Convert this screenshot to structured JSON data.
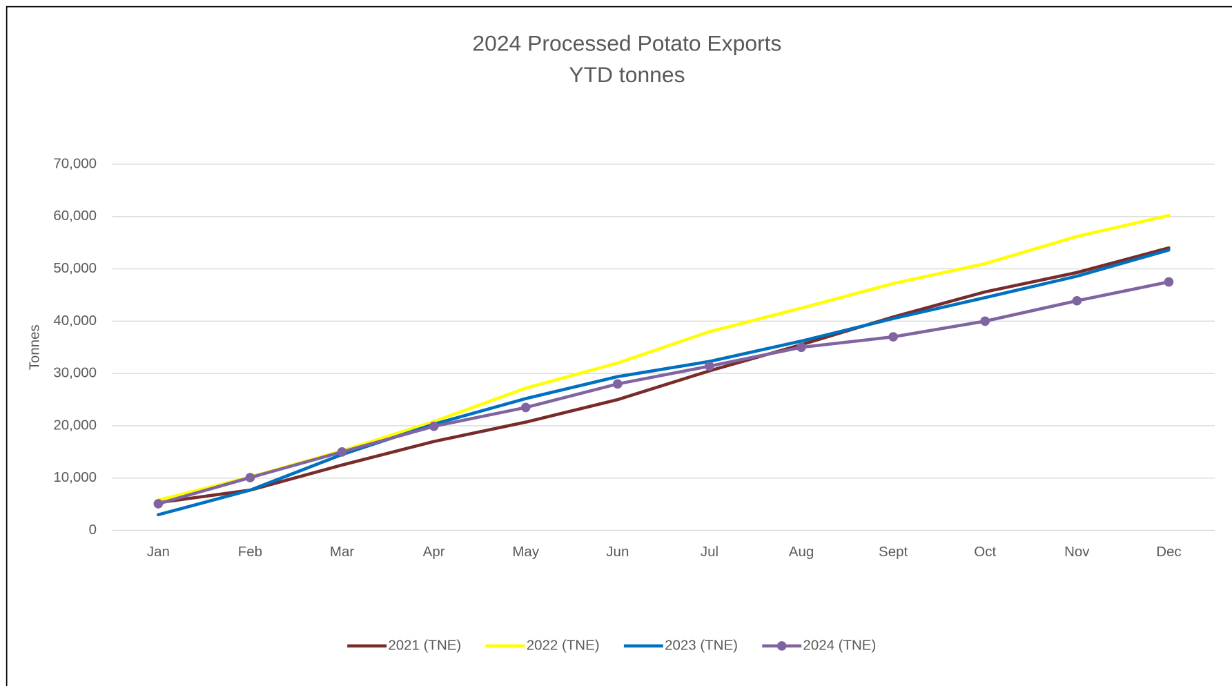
{
  "chart_data": {
    "type": "line",
    "title": "2024 Processed Potato Exports",
    "subtitle": "YTD tonnes",
    "y_label": "Tonnes",
    "categories": [
      "Jan",
      "Feb",
      "Mar",
      "Apr",
      "May",
      "Jun",
      "Jul",
      "Aug",
      "Sept",
      "Oct",
      "Nov",
      "Dec"
    ],
    "series": [
      {
        "name": "2021 (TNE)",
        "color": "#772c2a",
        "markers": false,
        "values": [
          5300,
          7700,
          12500,
          17000,
          20700,
          25000,
          30500,
          35500,
          40800,
          45600,
          49300,
          54000
        ]
      },
      {
        "name": "2022 (TNE)",
        "color": "#ffff00",
        "markers": false,
        "values": [
          5800,
          10200,
          15200,
          20800,
          27200,
          32000,
          38000,
          42500,
          47200,
          51000,
          56200,
          60200
        ]
      },
      {
        "name": "2023 (TNE)",
        "color": "#0070c0",
        "markers": false,
        "values": [
          3000,
          7700,
          14500,
          20300,
          25200,
          29400,
          32300,
          36200,
          40500,
          44500,
          48600,
          53600
        ]
      },
      {
        "name": "2024 (TNE)",
        "color": "#8064a2",
        "markers": true,
        "values": [
          5100,
          10100,
          15000,
          19900,
          23500,
          28000,
          31400,
          35000,
          37000,
          40000,
          43900,
          47500
        ]
      }
    ],
    "ylim": [
      0,
      70000
    ],
    "yticks": [
      0,
      {
        "value": 10000,
        "label": "10,000"
      },
      {
        "value": 20000,
        "label": "20,000"
      },
      {
        "value": 30000,
        "label": "30,000"
      },
      {
        "value": 40000,
        "label": "40,000"
      },
      {
        "value": 50000,
        "label": "50,000"
      },
      {
        "value": 60000,
        "label": "60,000"
      },
      {
        "value": 70000,
        "label": "70,000"
      }
    ],
    "grid": true,
    "legend": "bottom"
  }
}
